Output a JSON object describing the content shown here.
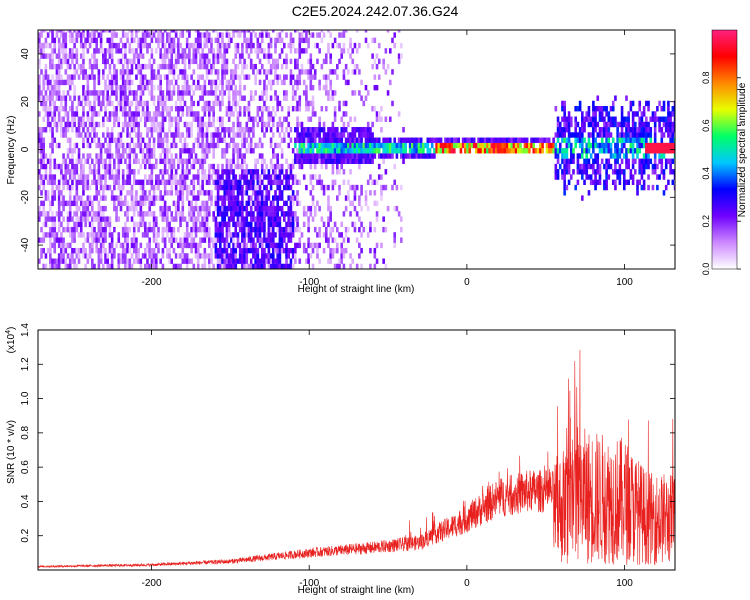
{
  "title": "C2E5.2024.242.07.36.G24",
  "chart_data": [
    {
      "type": "heatmap",
      "xlabel": "Height of straight line (km)",
      "ylabel": "Frequency (Hz)",
      "xlim": [
        -272,
        132
      ],
      "ylim": [
        -50,
        50
      ],
      "xticks": [
        -200,
        -100,
        0,
        100
      ],
      "xtick_labels": [
        "-200",
        "-100",
        "0",
        "100"
      ],
      "yticks": [
        -40,
        -20,
        0,
        20,
        40
      ],
      "ytick_labels": [
        "-40",
        "-20",
        "0",
        "20",
        "40"
      ],
      "colorbar": {
        "label": "Normalized spectral amplitude",
        "range": [
          0,
          1
        ],
        "ticks": [
          0,
          0.2,
          0.4,
          0.6,
          0.8
        ],
        "tick_labels": [
          "0.0",
          "0.2",
          "0.4",
          "0.6",
          "0.8"
        ],
        "colors": [
          "#ffffff",
          "#cc88ff",
          "#7000ff",
          "#0000ff",
          "#00c8ff",
          "#00ff66",
          "#e8ff00",
          "#ff8800",
          "#ff0000",
          "#ff2080"
        ]
      },
      "features": [
        {
          "x_range": [
            -272,
            -100
          ],
          "freq_range": [
            -50,
            50
          ],
          "amplitude": 0.15,
          "description_of_shape": "broadband scatter"
        },
        {
          "x_range": [
            -100,
            55
          ],
          "freq_center": 0,
          "amplitude": 0.8
        },
        {
          "x_range": [
            55,
            132
          ],
          "freq_center": 0,
          "amplitude": 0.5
        }
      ]
    },
    {
      "type": "line",
      "xlabel": "Height of straight line (km)",
      "ylabel": "SNR (10 * v/v)",
      "y_multiplier": "(x10",
      "y_multiplier_exp": "4",
      "xlim": [
        -272,
        132
      ],
      "ylim": [
        0,
        1.4
      ],
      "xticks": [
        -200,
        -100,
        0,
        100
      ],
      "xtick_labels": [
        "-200",
        "-100",
        "0",
        "100"
      ],
      "yticks": [
        0.2,
        0.4,
        0.6,
        0.8,
        1.0,
        1.2,
        1.4
      ],
      "ytick_labels": [
        "0.2",
        "0.4",
        "0.6",
        "0.8",
        "1.0",
        "1.2",
        "1.4"
      ],
      "series": [
        {
          "color": "#e8201e",
          "envelope_x": [
            -272,
            -200,
            -150,
            -120,
            -100,
            -60,
            -30,
            -20,
            -10,
            0,
            20,
            40,
            54,
            55,
            70,
            100,
            115,
            132
          ],
          "envelope_y": [
            0.02,
            0.03,
            0.05,
            0.08,
            0.1,
            0.13,
            0.16,
            0.21,
            0.25,
            0.3,
            0.42,
            0.46,
            0.46,
            0.45,
            0.6,
            0.55,
            0.4,
            0.4
          ]
        }
      ]
    }
  ]
}
